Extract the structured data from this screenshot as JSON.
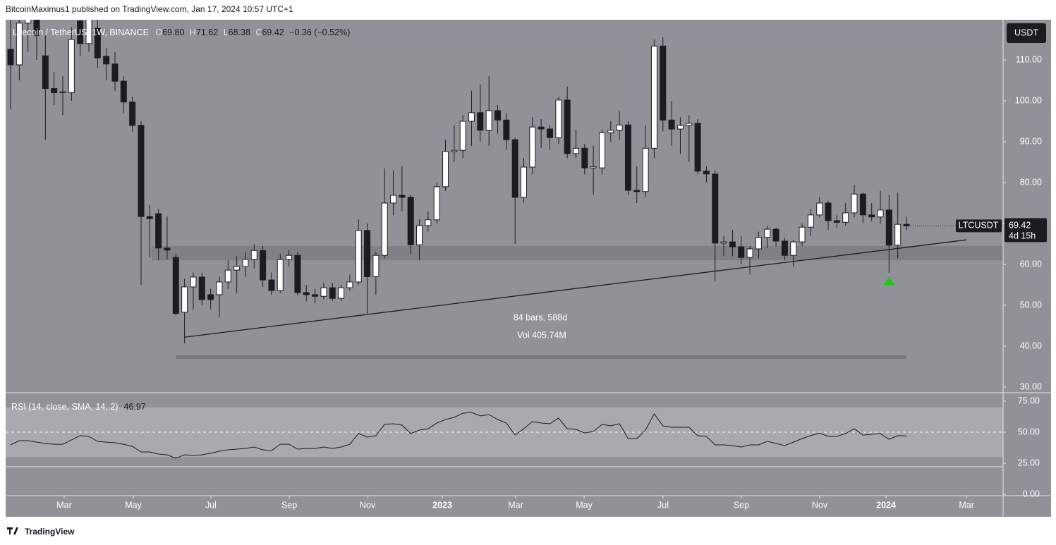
{
  "header": "BitcoinMaximus1 published on TradingView.com, Jan 17, 2024 10:57 UTC+1",
  "footer": "TradingView",
  "chart_data": [
    {
      "type": "candlestick",
      "title": "Litecoin / TetherUS, 1W, BINANCE",
      "ohlc_legend": [
        {
          "key": "O",
          "value": "69.80"
        },
        {
          "key": "H",
          "value": "71.62"
        },
        {
          "key": "L",
          "value": "68.38"
        },
        {
          "key": "C",
          "value": "69.42"
        }
      ],
      "change": "−0.36 (−0.52%)",
      "currency": "USDT",
      "symbol": "LTCUSDT",
      "last_price": "69.42",
      "countdown": "4d 15h",
      "bull_color": "#ffffff",
      "bear_color": "#1c1c20",
      "x": [
        0,
        1,
        2,
        3,
        4,
        5,
        6,
        7,
        8,
        9,
        10,
        11,
        12,
        13,
        14,
        15,
        16,
        17,
        18,
        19,
        20,
        21,
        22,
        23,
        24,
        25,
        26,
        27,
        28,
        29,
        30,
        31,
        32,
        33,
        34,
        35,
        36,
        37,
        38,
        39,
        40,
        41,
        42,
        43,
        44,
        45,
        46,
        47,
        48,
        49,
        50,
        51,
        52,
        53,
        54,
        55,
        56,
        57,
        58,
        59,
        60,
        61,
        62,
        63,
        64,
        65,
        66,
        67,
        68,
        69,
        70,
        71,
        72,
        73,
        74,
        75,
        76,
        77,
        78,
        79,
        80,
        81,
        82,
        83,
        84,
        85,
        86,
        87,
        88,
        89,
        90,
        91,
        92,
        93,
        94,
        95,
        96,
        97,
        98,
        99,
        100,
        101,
        102,
        103
      ],
      "open": [
        112.6,
        108.8,
        119,
        128,
        111,
        103,
        102,
        102,
        119.5,
        114,
        117.7,
        110.9,
        109,
        104.8,
        99.7,
        94,
        71.7,
        72.4,
        64,
        61.7,
        48.3,
        54.5,
        56.9,
        52.6,
        52.6,
        55.7,
        58.6,
        59.5,
        61.2,
        63.4,
        56.2,
        53.6,
        61.2,
        62.2,
        53.1,
        52.6,
        52.2,
        54.3,
        51.7,
        54.3,
        55.7,
        68.3,
        57,
        62.2,
        75,
        76.9,
        76.4,
        64.8,
        69.5,
        70.9,
        79,
        87.6,
        87.9,
        95,
        97.1,
        92.8,
        97.6,
        95.3,
        90.5,
        76.4,
        83.8,
        93.6,
        93.1,
        91,
        100.2,
        87.1,
        88.4,
        83.6,
        83.6,
        92.2,
        92.8,
        94.1,
        78.1,
        77.8,
        88.4,
        113.4,
        95.3,
        93.1,
        94,
        94.5,
        82.8,
        82.1,
        65.2,
        65.5,
        64.3,
        61.7,
        63.8,
        66.6,
        68.6,
        65.7,
        62.2,
        65.5,
        69.1,
        72.1,
        75,
        70.7,
        70.3,
        72.6,
        77.2,
        72.1,
        71.6,
        73.3,
        64.7,
        69.8
      ],
      "high": [
        125,
        126,
        135,
        132,
        116,
        107,
        106,
        118,
        126,
        125,
        120,
        113,
        112,
        106,
        101,
        95,
        74.6,
        73.5,
        71.7,
        62.5,
        56.5,
        58,
        58,
        54,
        57,
        61,
        62,
        63,
        65,
        64.5,
        58,
        62.5,
        63.5,
        63,
        55,
        54,
        55.5,
        55.5,
        55,
        57.5,
        71,
        70,
        63,
        83.5,
        83,
        84,
        77,
        71,
        73,
        80,
        90.5,
        94,
        96.5,
        102.5,
        104,
        106,
        99,
        97,
        91,
        86,
        96,
        95.5,
        94,
        101,
        103.5,
        93,
        89.5,
        89,
        93,
        95,
        97.5,
        95,
        84,
        94,
        115,
        115.5,
        100,
        96,
        96.5,
        95.5,
        84,
        83,
        67,
        68.5,
        67,
        64.5,
        68,
        69.5,
        69,
        66.5,
        66,
        70,
        73.5,
        76.5,
        75.5,
        72,
        75,
        79.5,
        77.5,
        75,
        78,
        77,
        77.5,
        71.62
      ],
      "low": [
        98,
        105,
        112,
        110,
        90.5,
        99,
        96.5,
        100,
        111,
        112,
        108,
        105,
        102.4,
        97,
        92.4,
        55,
        61.7,
        61,
        61.2,
        47.5,
        40.7,
        49,
        50,
        49,
        47,
        54,
        53,
        57,
        59,
        54.5,
        52.5,
        53,
        59.5,
        52.5,
        51,
        50.5,
        51.5,
        51,
        51,
        53.5,
        55,
        48,
        52.5,
        61.5,
        72,
        73,
        62.5,
        61,
        68,
        70,
        78,
        85,
        86,
        89,
        90,
        89,
        92,
        88,
        65,
        75,
        82,
        88.5,
        88,
        89.5,
        86,
        86,
        82,
        77,
        82,
        90,
        90.5,
        77,
        75,
        76.5,
        86,
        92.5,
        89,
        87,
        85,
        82,
        80,
        56,
        62,
        62,
        60,
        57.5,
        61.5,
        64,
        64.5,
        61,
        59.5,
        64.5,
        67,
        71.5,
        68.5,
        69,
        69.5,
        71.5,
        70,
        70.5,
        70,
        57.9,
        61.5,
        68.38
      ],
      "close": [
        108.8,
        119,
        128,
        116,
        103,
        102,
        102.2,
        115,
        114,
        120,
        110.5,
        109,
        104.8,
        99.7,
        94,
        71.7,
        71.2,
        64,
        63.5,
        48,
        54.5,
        56.9,
        51.4,
        51.4,
        55.7,
        58.6,
        59.5,
        61.2,
        63.4,
        56.2,
        53.6,
        61.2,
        62.2,
        53.1,
        52.6,
        52.2,
        54.3,
        51.7,
        54.3,
        55.7,
        68.3,
        57,
        62.2,
        75,
        76.9,
        76.4,
        64.8,
        69.5,
        70.9,
        79,
        87.6,
        87.9,
        95,
        97.1,
        92.8,
        97.6,
        95.3,
        90.5,
        76.4,
        83.8,
        93.6,
        93.1,
        91,
        100.2,
        87.1,
        88.4,
        83.6,
        83.9,
        92.2,
        92.8,
        94.1,
        78.1,
        77.8,
        88.4,
        113.4,
        95.3,
        93.1,
        94,
        94.5,
        82.8,
        82.1,
        65.2,
        65.5,
        64.3,
        61.7,
        63.8,
        66.6,
        68.6,
        65.7,
        62.2,
        65.5,
        69.1,
        72.1,
        75,
        70.7,
        70.3,
        72.6,
        77.2,
        72.1,
        71.6,
        73.3,
        64.7,
        69.8,
        69.42
      ],
      "xlim": [
        -0.57,
        114.11
      ],
      "xticks": [
        {
          "value": 6.16,
          "label": "Mar"
        },
        {
          "value": 14.11,
          "label": "May"
        },
        {
          "value": 23.03,
          "label": "Jul"
        },
        {
          "value": 32.04,
          "label": "Sep"
        },
        {
          "value": 41.04,
          "label": "Nov"
        },
        {
          "value": 49.64,
          "label": "2023"
        },
        {
          "value": 58.07,
          "label": "Mar"
        },
        {
          "value": 65.94,
          "label": "May"
        },
        {
          "value": 75.02,
          "label": "Jul"
        },
        {
          "value": 84.02,
          "label": "Sep"
        },
        {
          "value": 93.02,
          "label": "Nov"
        },
        {
          "value": 100.65,
          "label": "2024"
        },
        {
          "value": 109.9,
          "label": "Mar"
        }
      ],
      "ylim": [
        28.62,
        119.83
      ],
      "yticks": [
        {
          "value": 30,
          "label": "30.00"
        },
        {
          "value": 40,
          "label": "40.00"
        },
        {
          "value": 50,
          "label": "50.00"
        },
        {
          "value": 60,
          "label": "60.00"
        },
        {
          "value": 70,
          "label": "70.00"
        },
        {
          "value": 80,
          "label": "80.00"
        },
        {
          "value": 90,
          "label": "90.00"
        },
        {
          "value": 100,
          "label": "100.00"
        },
        {
          "value": 110,
          "label": "110.00"
        }
      ],
      "zone": {
        "low": 61,
        "high": 64.5,
        "x_start": 16.2
      },
      "trendline": {
        "x": [
          20,
          109.9
        ],
        "y": [
          42.2,
          66
        ]
      },
      "level_line": {
        "y": 37.3,
        "x": [
          19,
          103
        ]
      },
      "signal": {
        "x": 101,
        "y": 56,
        "color": "#22c31e"
      },
      "measure": {
        "bars_label": "84 bars, 588d",
        "vol_label": "Vol 405.74M"
      }
    },
    {
      "type": "line",
      "title": "RSI (14, close, SMA, 14, 2)",
      "value_label": "46.97",
      "color": "#1b1b1b",
      "values": [
        39.8,
        43.2,
        43.2,
        42,
        40.9,
        40.3,
        40.3,
        43.8,
        47.2,
        46.6,
        42.6,
        42,
        41.5,
        40.3,
        38.6,
        34.1,
        34.1,
        32.4,
        31.8,
        29,
        31.8,
        31.3,
        31.8,
        33,
        34.7,
        35.8,
        36.4,
        36.9,
        38.1,
        35.8,
        35.2,
        40.3,
        40.3,
        36.4,
        36.9,
        36.9,
        38.1,
        36.9,
        38.1,
        40.3,
        48.9,
        46,
        47.2,
        56.3,
        56.8,
        55.7,
        48.9,
        51.7,
        52.8,
        57.4,
        60.2,
        61.9,
        65.3,
        65.9,
        63.1,
        64.2,
        60.2,
        57.4,
        47.7,
        52.8,
        58.5,
        57.4,
        56.8,
        61.4,
        52.8,
        52.3,
        49.4,
        50.6,
        56.3,
        55.1,
        56.8,
        44.9,
        44.9,
        51.7,
        64.8,
        55.1,
        54,
        54,
        54,
        47.2,
        46.6,
        39.8,
        39.8,
        39.2,
        38.1,
        39.8,
        39.8,
        42.6,
        40.9,
        39.2,
        42,
        44.9,
        47.2,
        49.4,
        46.6,
        46.6,
        48.9,
        52.8,
        47.7,
        48.3,
        48.9,
        44.3,
        47.2,
        46.97
      ],
      "ylim": [
        -1.1,
        81.8
      ],
      "yticks": [
        {
          "value": 0,
          "label": "0.00"
        },
        {
          "value": 25,
          "label": "25.00"
        },
        {
          "value": 50,
          "label": "50.00"
        },
        {
          "value": 75,
          "label": "75.00"
        }
      ],
      "band": [
        30,
        70
      ],
      "midline": 50
    }
  ]
}
